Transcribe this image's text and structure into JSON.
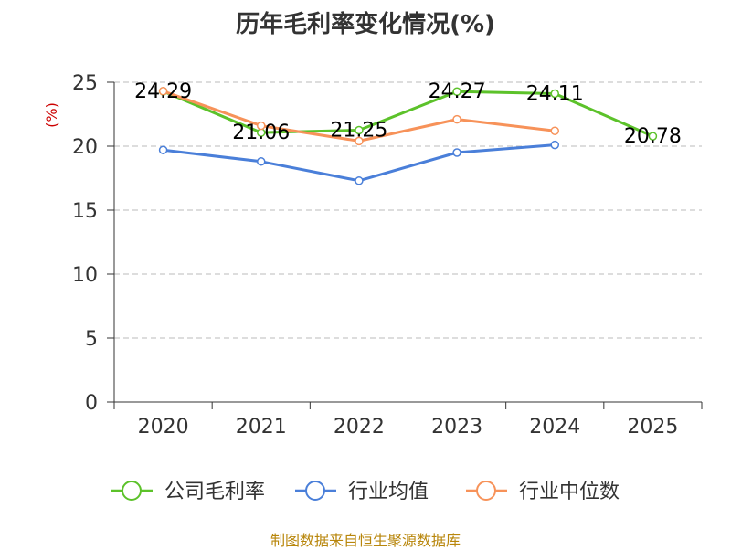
{
  "chart_data": {
    "type": "line",
    "title": "历年毛利率变化情况(%)",
    "ylabel": "(%)",
    "xlabel": "",
    "categories": [
      "2020",
      "2021",
      "2022",
      "2023",
      "2024",
      "2025"
    ],
    "ylim": [
      0,
      25
    ],
    "yticks": [
      0,
      5,
      10,
      15,
      20,
      25
    ],
    "grid": true,
    "legend_position": "bottom",
    "series": [
      {
        "name": "公司毛利率",
        "color": "#5cc22a",
        "values": [
          24.29,
          21.06,
          21.25,
          24.27,
          24.11,
          20.78
        ],
        "labels": [
          "24.29",
          "21.06",
          "21.25",
          "24.27",
          "24.11",
          "20.78"
        ]
      },
      {
        "name": "行业均值",
        "color": "#4a7fd9",
        "values": [
          19.7,
          18.8,
          17.3,
          19.5,
          20.1,
          null
        ]
      },
      {
        "name": "行业中位数",
        "color": "#f79259",
        "values": [
          24.3,
          21.6,
          20.4,
          22.1,
          21.2,
          null
        ]
      }
    ]
  },
  "source": "制图数据来自恒生聚源数据库",
  "ylabel_color": "#cc0000"
}
